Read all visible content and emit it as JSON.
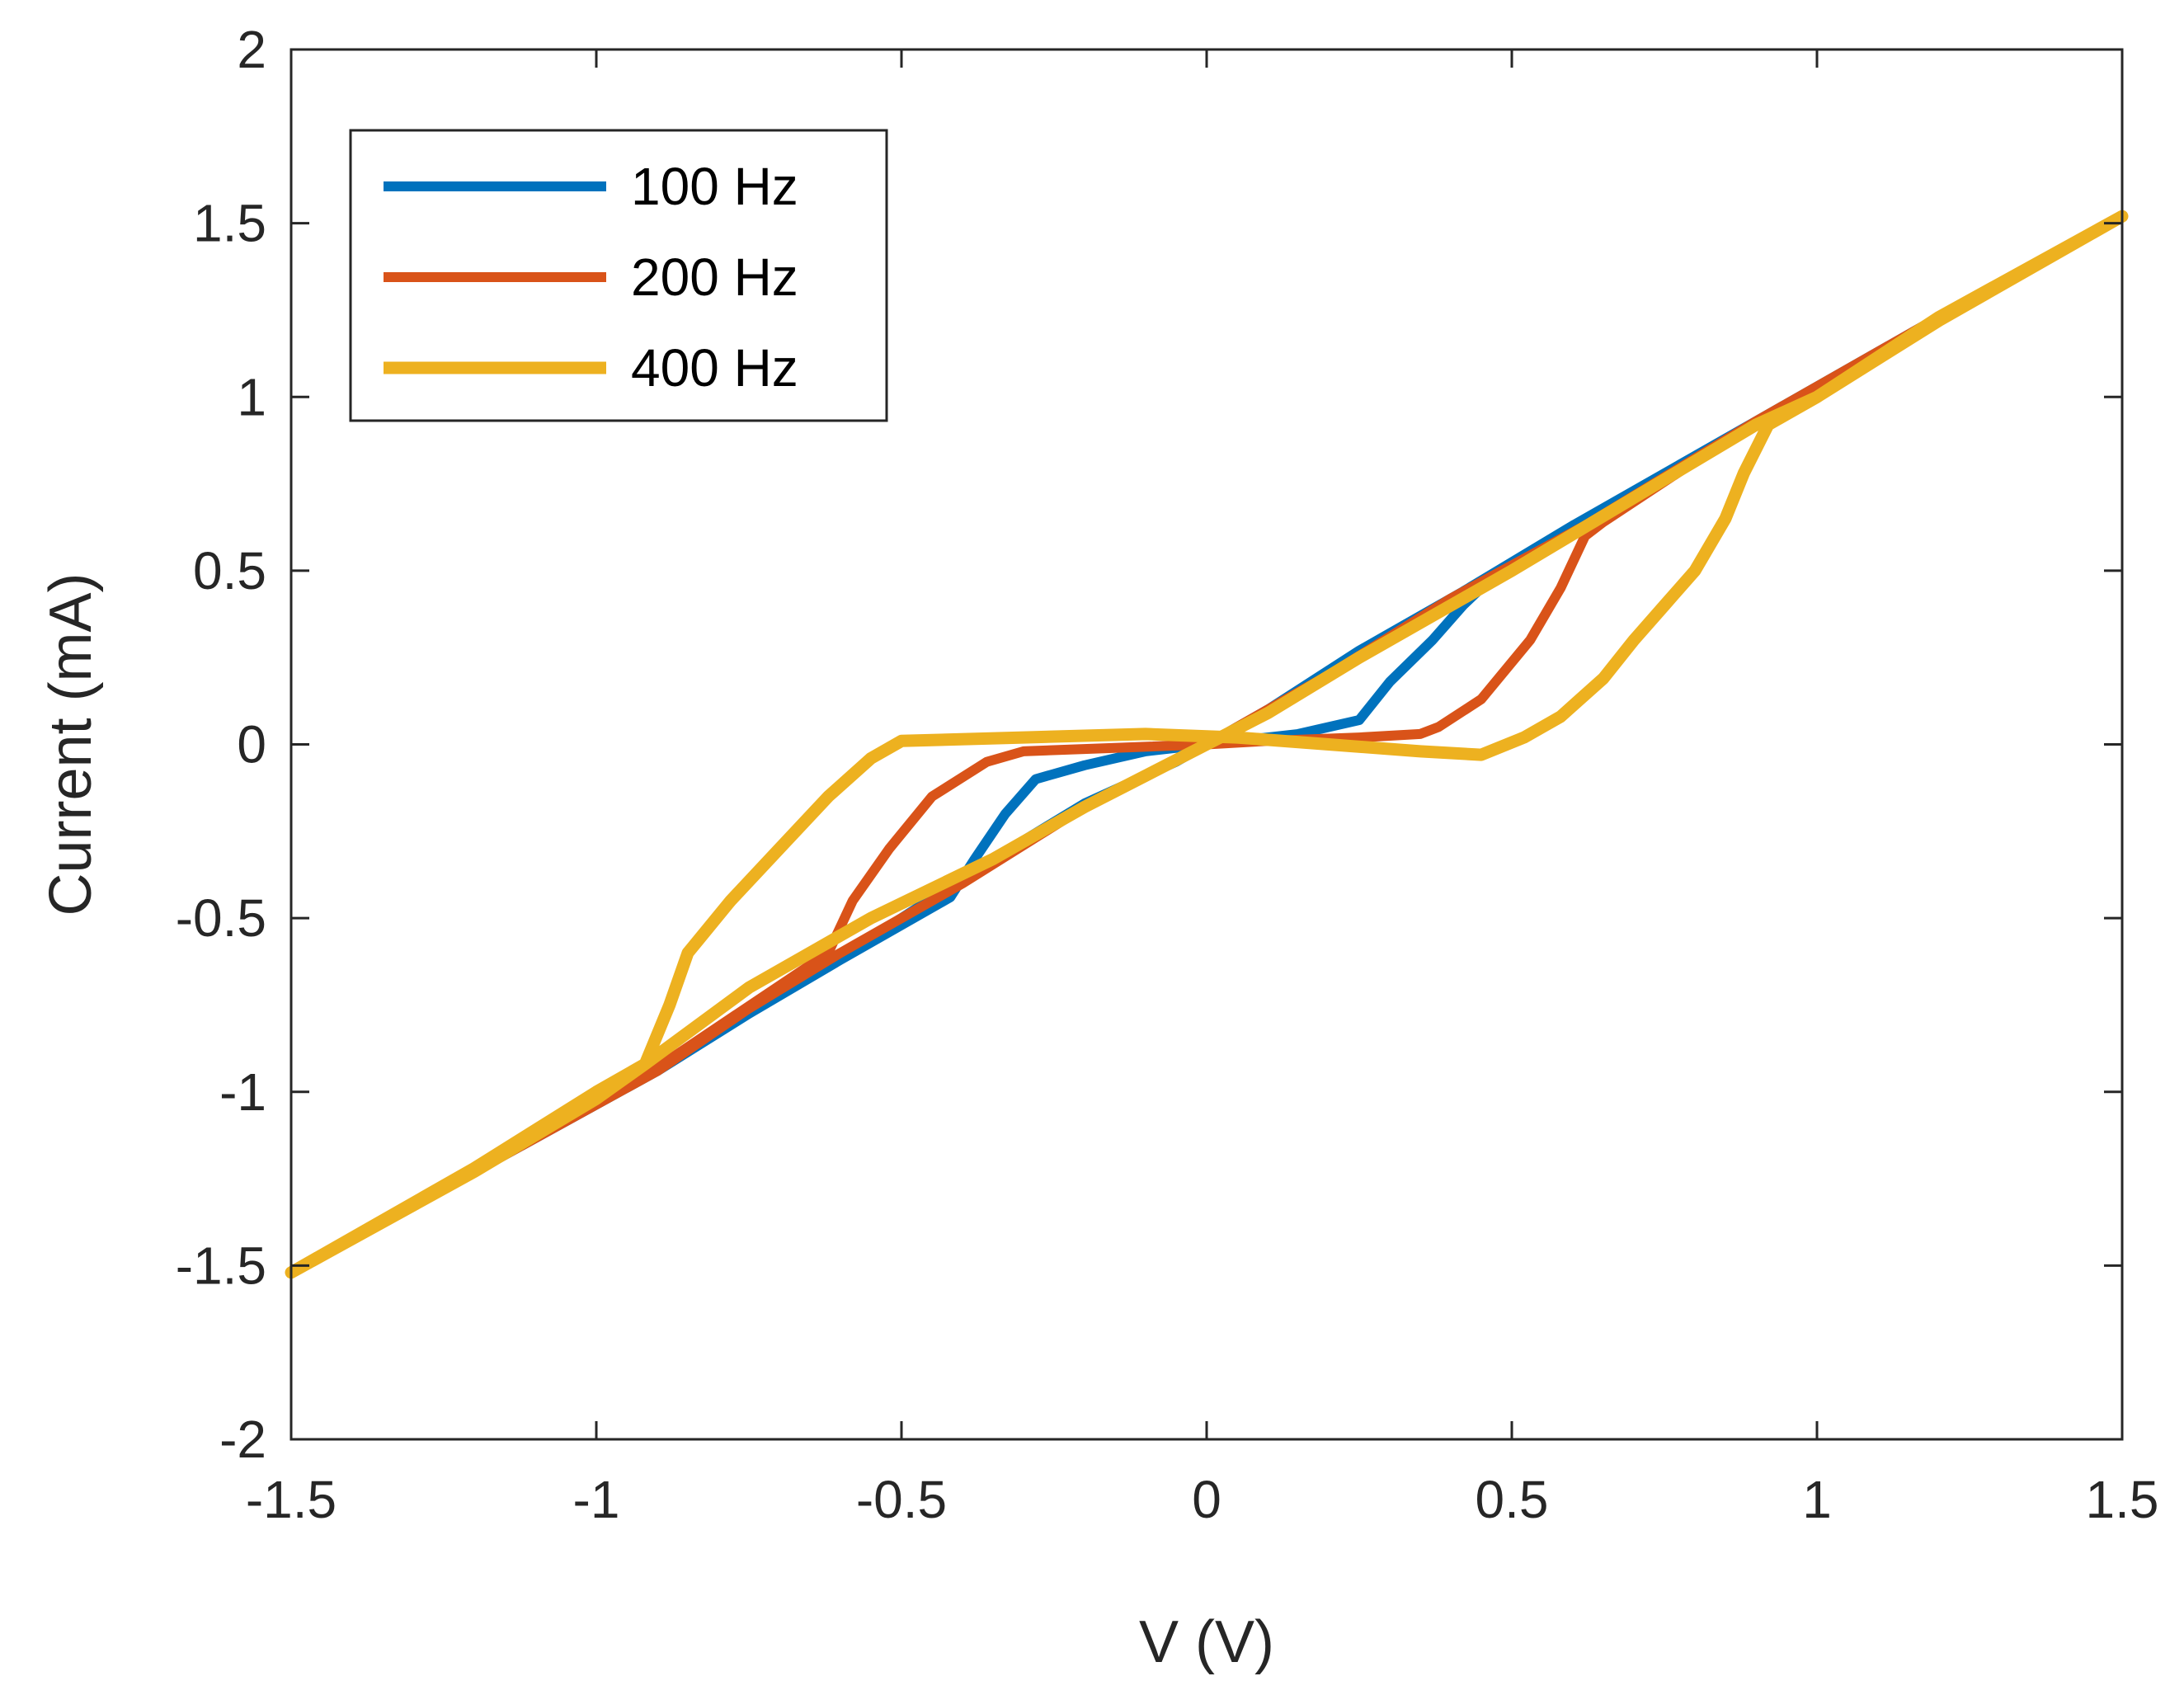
{
  "chart_data": {
    "type": "line",
    "title": "",
    "xlabel": "V (V)",
    "ylabel": "Current (mA)",
    "xlim": [
      -1.5,
      1.5
    ],
    "ylim": [
      -2,
      2
    ],
    "x_ticks": [
      -1.5,
      -1,
      -0.5,
      0,
      0.5,
      1,
      1.5
    ],
    "x_tick_labels": [
      "-1.5",
      "-1",
      "-0.5",
      "0",
      "0.5",
      "1",
      "1.5"
    ],
    "y_ticks": [
      -2,
      -1.5,
      -1,
      -0.5,
      0,
      0.5,
      1,
      1.5,
      2
    ],
    "y_tick_labels": [
      "-2",
      "-1.5",
      "-1",
      "-0.5",
      "0",
      "0.5",
      "1",
      "1.5",
      "2"
    ],
    "grid": false,
    "legend_position": "top-left",
    "series": [
      {
        "name": "100 Hz",
        "color": "#0072BD",
        "points": [
          [
            -1.5,
            -1.52
          ],
          [
            -1.2,
            -1.23
          ],
          [
            -0.9,
            -0.94
          ],
          [
            -0.7,
            -0.72
          ],
          [
            -0.5,
            -0.5
          ],
          [
            -0.35,
            -0.33
          ],
          [
            -0.2,
            -0.17
          ],
          [
            -0.05,
            -0.05
          ],
          [
            0.0,
            0.0
          ],
          [
            0.1,
            0.1
          ],
          [
            0.25,
            0.27
          ],
          [
            0.42,
            0.44
          ],
          [
            0.6,
            0.63
          ],
          [
            0.9,
            0.93
          ],
          [
            1.2,
            1.23
          ],
          [
            1.5,
            1.52
          ],
          [
            1.2,
            1.22
          ],
          [
            0.9,
            0.93
          ],
          [
            0.6,
            0.62
          ],
          [
            0.45,
            0.45
          ],
          [
            0.42,
            0.4
          ],
          [
            0.37,
            0.3
          ],
          [
            0.3,
            0.18
          ],
          [
            0.25,
            0.07
          ],
          [
            0.15,
            0.03
          ],
          [
            0.05,
            0.01
          ],
          [
            0.0,
            0.0
          ],
          [
            -0.1,
            -0.02
          ],
          [
            -0.2,
            -0.06
          ],
          [
            -0.28,
            -0.1
          ],
          [
            -0.33,
            -0.2
          ],
          [
            -0.38,
            -0.33
          ],
          [
            -0.42,
            -0.44
          ],
          [
            -0.6,
            -0.62
          ],
          [
            -0.9,
            -0.93
          ],
          [
            -1.2,
            -1.22
          ],
          [
            -1.5,
            -1.52
          ]
        ]
      },
      {
        "name": "200 Hz",
        "color": "#D95319",
        "points": [
          [
            -1.5,
            -1.52
          ],
          [
            -1.2,
            -1.23
          ],
          [
            -0.9,
            -0.94
          ],
          [
            -0.75,
            -0.76
          ],
          [
            -0.6,
            -0.6
          ],
          [
            -0.4,
            -0.4
          ],
          [
            -0.2,
            -0.18
          ],
          [
            0.0,
            0.0
          ],
          [
            0.2,
            0.2
          ],
          [
            0.4,
            0.42
          ],
          [
            0.62,
            0.63
          ],
          [
            0.9,
            0.93
          ],
          [
            1.2,
            1.23
          ],
          [
            1.5,
            1.52
          ],
          [
            1.2,
            1.22
          ],
          [
            0.9,
            0.93
          ],
          [
            0.65,
            0.64
          ],
          [
            0.62,
            0.6
          ],
          [
            0.58,
            0.45
          ],
          [
            0.53,
            0.3
          ],
          [
            0.45,
            0.13
          ],
          [
            0.38,
            0.05
          ],
          [
            0.35,
            0.03
          ],
          [
            0.25,
            0.02
          ],
          [
            0.1,
            0.01
          ],
          [
            0.0,
            0.0
          ],
          [
            -0.15,
            -0.01
          ],
          [
            -0.3,
            -0.02
          ],
          [
            -0.36,
            -0.05
          ],
          [
            -0.45,
            -0.15
          ],
          [
            -0.52,
            -0.3
          ],
          [
            -0.58,
            -0.45
          ],
          [
            -0.62,
            -0.6
          ],
          [
            -0.9,
            -0.93
          ],
          [
            -1.2,
            -1.22
          ],
          [
            -1.5,
            -1.52
          ]
        ]
      },
      {
        "name": "400 Hz",
        "color": "#EDB120",
        "points": [
          [
            -1.5,
            -1.52
          ],
          [
            -1.2,
            -1.23
          ],
          [
            -1.0,
            -1.02
          ],
          [
            -0.92,
            -0.92
          ],
          [
            -0.75,
            -0.7
          ],
          [
            -0.55,
            -0.5
          ],
          [
            -0.35,
            -0.33
          ],
          [
            -0.2,
            -0.18
          ],
          [
            -0.1,
            -0.09
          ],
          [
            0.0,
            0.0
          ],
          [
            0.1,
            0.09
          ],
          [
            0.25,
            0.25
          ],
          [
            0.5,
            0.5
          ],
          [
            0.7,
            0.71
          ],
          [
            0.9,
            0.92
          ],
          [
            1.0,
            1.0
          ],
          [
            1.2,
            1.23
          ],
          [
            1.5,
            1.52
          ],
          [
            1.2,
            1.22
          ],
          [
            1.0,
            1.0
          ],
          [
            0.92,
            0.92
          ],
          [
            0.88,
            0.78
          ],
          [
            0.85,
            0.65
          ],
          [
            0.8,
            0.5
          ],
          [
            0.75,
            0.4
          ],
          [
            0.7,
            0.3
          ],
          [
            0.65,
            0.19
          ],
          [
            0.58,
            0.08
          ],
          [
            0.52,
            0.02
          ],
          [
            0.45,
            -0.03
          ],
          [
            0.35,
            -0.02
          ],
          [
            0.2,
            0.0
          ],
          [
            0.05,
            0.02
          ],
          [
            -0.1,
            0.03
          ],
          [
            -0.3,
            0.02
          ],
          [
            -0.5,
            0.01
          ],
          [
            -0.55,
            -0.04
          ],
          [
            -0.62,
            -0.15
          ],
          [
            -0.7,
            -0.3
          ],
          [
            -0.78,
            -0.45
          ],
          [
            -0.85,
            -0.6
          ],
          [
            -0.88,
            -0.75
          ],
          [
            -0.92,
            -0.92
          ],
          [
            -1.0,
            -1.0
          ],
          [
            -1.2,
            -1.22
          ],
          [
            -1.5,
            -1.52
          ]
        ]
      }
    ]
  }
}
